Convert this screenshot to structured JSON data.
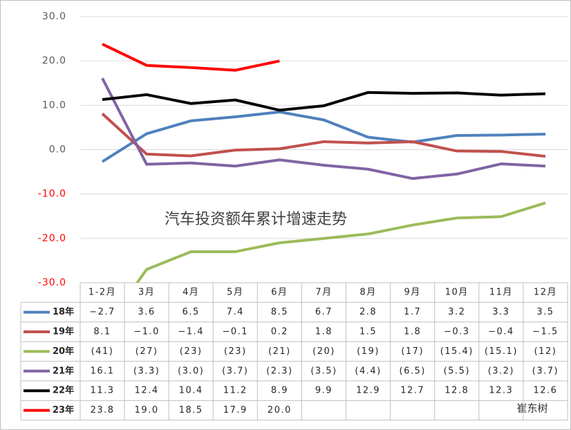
{
  "chart_data": {
    "type": "line",
    "title": "汽车投资额年累计增速走势",
    "categories": [
      "1-2月",
      "3月",
      "4月",
      "5月",
      "6月",
      "7月",
      "8月",
      "9月",
      "10月",
      "11月",
      "12月"
    ],
    "ylim": [
      -30,
      30
    ],
    "yticks": [
      {
        "value": 30,
        "label": "30.0"
      },
      {
        "value": 20,
        "label": "20.0"
      },
      {
        "value": 10,
        "label": "10.0"
      },
      {
        "value": 0,
        "label": "0.0"
      },
      {
        "value": -10,
        "label": "-10.0"
      },
      {
        "value": -20,
        "label": "-20.0"
      },
      {
        "value": -30,
        "label": "-30.0"
      }
    ],
    "grid": true,
    "tick_color": "#595959",
    "negative_tick_color": "#ff0000",
    "watermark": "崔东树",
    "series": [
      {
        "name": "18年",
        "color": "#4f81bd",
        "values": [
          -2.7,
          3.6,
          6.5,
          7.4,
          8.5,
          6.7,
          2.8,
          1.7,
          3.2,
          3.3,
          3.5
        ],
        "value_labels": [
          "−2.7",
          "3.6",
          "6.5",
          "7.4",
          "8.5",
          "6.7",
          "2.8",
          "1.7",
          "3.2",
          "3.3",
          "3.5"
        ]
      },
      {
        "name": "19年",
        "color": "#c0504d",
        "values": [
          8.1,
          -1.0,
          -1.4,
          -0.1,
          0.2,
          1.8,
          1.5,
          1.8,
          -0.3,
          -0.4,
          -1.5
        ],
        "value_labels": [
          "8.1",
          "−1.0",
          "−1.4",
          "−0.1",
          "0.2",
          "1.8",
          "1.5",
          "1.8",
          "−0.3",
          "−0.4",
          "−1.5"
        ]
      },
      {
        "name": "20年",
        "color": "#9bbb59",
        "values": [
          -41,
          -27,
          -23,
          -23,
          -21,
          -20,
          -19,
          -17,
          -15.4,
          -15.1,
          -12
        ],
        "value_labels": [
          "(41)",
          "(27)",
          "(23)",
          "(23)",
          "(21)",
          "(20)",
          "(19)",
          "(17)",
          "(15.4)",
          "(15.1)",
          "(12)"
        ]
      },
      {
        "name": "21年",
        "color": "#8064a2",
        "values": [
          16.1,
          -3.3,
          -3.0,
          -3.7,
          -2.3,
          -3.5,
          -4.4,
          -6.5,
          -5.5,
          -3.2,
          -3.7
        ],
        "value_labels": [
          "16.1",
          "(3.3)",
          "(3.0)",
          "(3.7)",
          "(2.3)",
          "(3.5)",
          "(4.4)",
          "(6.5)",
          "(5.5)",
          "(3.2)",
          "(3.7)"
        ]
      },
      {
        "name": "22年",
        "color": "#000000",
        "values": [
          11.3,
          12.4,
          10.4,
          11.2,
          8.9,
          9.9,
          12.9,
          12.7,
          12.8,
          12.3,
          12.6
        ],
        "value_labels": [
          "11.3",
          "12.4",
          "10.4",
          "11.2",
          "8.9",
          "9.9",
          "12.9",
          "12.7",
          "12.8",
          "12.3",
          "12.6"
        ]
      },
      {
        "name": "23年",
        "color": "#ff0000",
        "values": [
          23.8,
          19.0,
          18.5,
          17.9,
          20.0,
          null,
          null,
          null,
          null,
          null,
          null
        ],
        "value_labels": [
          "23.8",
          "19.0",
          "18.5",
          "17.9",
          "20.0",
          null,
          null,
          null,
          null,
          null,
          null
        ]
      }
    ]
  }
}
